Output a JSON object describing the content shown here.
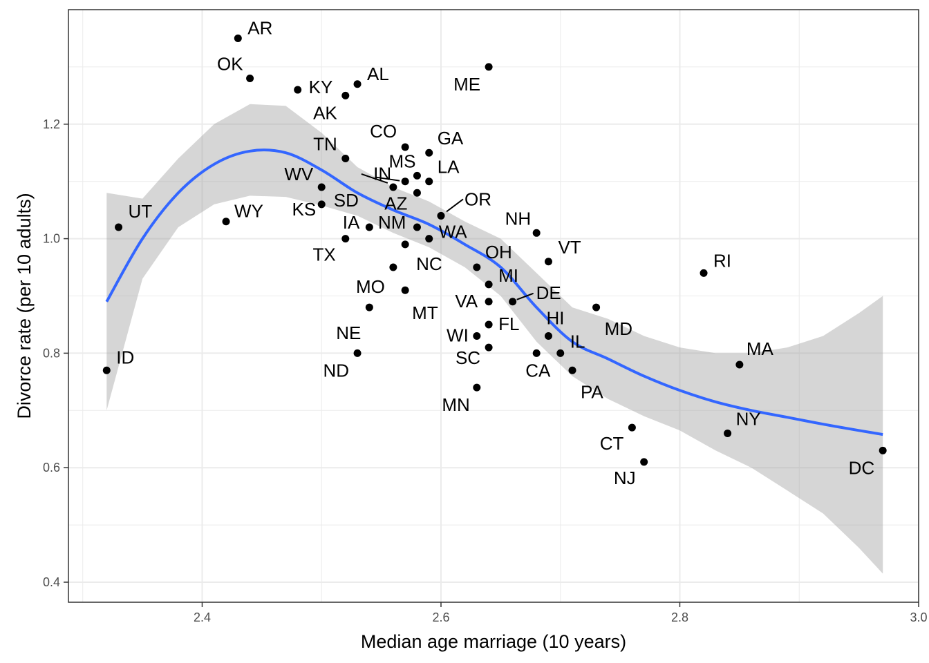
{
  "chart_data": {
    "type": "scatter",
    "title": "",
    "xlabel": "Median age marriage (10 years)",
    "ylabel": "Divorce rate (per 10 adults)",
    "xlim": [
      2.288,
      3.0
    ],
    "ylim": [
      0.365,
      1.4
    ],
    "x_ticks": [
      2.4,
      2.6,
      2.8,
      3.0
    ],
    "x_tick_labels": [
      "2.4",
      "2.6",
      "2.8",
      "3.0"
    ],
    "y_ticks": [
      0.4,
      0.6,
      0.8,
      1.0,
      1.2
    ],
    "y_tick_labels": [
      "0.4",
      "0.6",
      "0.8",
      "1.0",
      "1.2"
    ],
    "grid": true,
    "colors": {
      "point": "#000000",
      "smooth_line": "#3366FF",
      "ribbon": "#999999",
      "grid": "#ebebeb",
      "panel_border": "#333333"
    },
    "points": [
      {
        "label": "AR",
        "x": 2.43,
        "y": 1.35
      },
      {
        "label": "OK",
        "x": 2.44,
        "y": 1.28
      },
      {
        "label": "KY",
        "x": 2.48,
        "y": 1.26
      },
      {
        "label": "AL",
        "x": 2.53,
        "y": 1.27
      },
      {
        "label": "AK",
        "x": 2.52,
        "y": 1.25
      },
      {
        "label": "ME",
        "x": 2.64,
        "y": 1.3
      },
      {
        "label": "CO",
        "x": 2.57,
        "y": 1.16
      },
      {
        "label": "GA",
        "x": 2.59,
        "y": 1.15
      },
      {
        "label": "TN",
        "x": 2.52,
        "y": 1.14
      },
      {
        "label": "MS",
        "x": 2.58,
        "y": 1.11
      },
      {
        "label": "LA",
        "x": 2.59,
        "y": 1.1
      },
      {
        "label": "IN",
        "x": 2.57,
        "y": 1.1
      },
      {
        "label": "WV",
        "x": 2.5,
        "y": 1.09
      },
      {
        "label": "SD",
        "x": 2.56,
        "y": 1.09
      },
      {
        "label": "AZ",
        "x": 2.58,
        "y": 1.08
      },
      {
        "label": "OR",
        "x": 2.6,
        "y": 1.04
      },
      {
        "label": "WY",
        "x": 2.42,
        "y": 1.03
      },
      {
        "label": "UT",
        "x": 2.33,
        "y": 1.02
      },
      {
        "label": "KS",
        "x": 2.5,
        "y": 1.06
      },
      {
        "label": "IA",
        "x": 2.54,
        "y": 1.02
      },
      {
        "label": "NM",
        "x": 2.58,
        "y": 1.02
      },
      {
        "label": "WA",
        "x": 2.59,
        "y": 1.0
      },
      {
        "label": "TX",
        "x": 2.52,
        "y": 1.0
      },
      {
        "label": "NC",
        "x": 2.57,
        "y": 0.99
      },
      {
        "label": "NH",
        "x": 2.68,
        "y": 1.01
      },
      {
        "label": "VT",
        "x": 2.69,
        "y": 0.96
      },
      {
        "label": "OH",
        "x": 2.63,
        "y": 0.95
      },
      {
        "label": "MO",
        "x": 2.56,
        "y": 0.95
      },
      {
        "label": "MI",
        "x": 2.64,
        "y": 0.92
      },
      {
        "label": "MT",
        "x": 2.57,
        "y": 0.91
      },
      {
        "label": "VA",
        "x": 2.64,
        "y": 0.89
      },
      {
        "label": "DE",
        "x": 2.66,
        "y": 0.89
      },
      {
        "label": "NE",
        "x": 2.54,
        "y": 0.88
      },
      {
        "label": "MD",
        "x": 2.73,
        "y": 0.88
      },
      {
        "label": "RI",
        "x": 2.82,
        "y": 0.94
      },
      {
        "label": "HI",
        "x": 2.69,
        "y": 0.83
      },
      {
        "label": "FL",
        "x": 2.64,
        "y": 0.85
      },
      {
        "label": "WI",
        "x": 2.63,
        "y": 0.83
      },
      {
        "label": "IL",
        "x": 2.7,
        "y": 0.8
      },
      {
        "label": "SC",
        "x": 2.64,
        "y": 0.81
      },
      {
        "label": "CA",
        "x": 2.68,
        "y": 0.8
      },
      {
        "label": "ND",
        "x": 2.53,
        "y": 0.8
      },
      {
        "label": "PA",
        "x": 2.71,
        "y": 0.77
      },
      {
        "label": "ID",
        "x": 2.32,
        "y": 0.77
      },
      {
        "label": "MA",
        "x": 2.85,
        "y": 0.78
      },
      {
        "label": "MN",
        "x": 2.63,
        "y": 0.74
      },
      {
        "label": "NY",
        "x": 2.84,
        "y": 0.66
      },
      {
        "label": "CT",
        "x": 2.76,
        "y": 0.67
      },
      {
        "label": "NJ",
        "x": 2.77,
        "y": 0.61
      },
      {
        "label": "DC",
        "x": 2.97,
        "y": 0.63
      }
    ],
    "smooth": {
      "x": [
        2.32,
        2.35,
        2.38,
        2.41,
        2.44,
        2.47,
        2.5,
        2.53,
        2.56,
        2.59,
        2.62,
        2.65,
        2.68,
        2.71,
        2.74,
        2.77,
        2.8,
        2.83,
        2.86,
        2.89,
        2.92,
        2.95,
        2.97
      ],
      "y": [
        0.89,
        1.0,
        1.08,
        1.13,
        1.153,
        1.15,
        1.12,
        1.08,
        1.05,
        1.025,
        0.99,
        0.95,
        0.88,
        0.82,
        0.79,
        0.76,
        0.735,
        0.715,
        0.7,
        0.688,
        0.676,
        0.665,
        0.658
      ],
      "lower": [
        0.7,
        0.93,
        1.02,
        1.06,
        1.075,
        1.073,
        1.058,
        1.04,
        1.01,
        0.985,
        0.95,
        0.9,
        0.82,
        0.76,
        0.72,
        0.69,
        0.665,
        0.63,
        0.6,
        0.56,
        0.52,
        0.46,
        0.415
      ],
      "upper": [
        1.08,
        1.07,
        1.14,
        1.2,
        1.235,
        1.232,
        1.185,
        1.125,
        1.09,
        1.065,
        1.03,
        1.0,
        0.94,
        0.88,
        0.86,
        0.83,
        0.81,
        0.8,
        0.8,
        0.81,
        0.83,
        0.87,
        0.9
      ]
    }
  }
}
